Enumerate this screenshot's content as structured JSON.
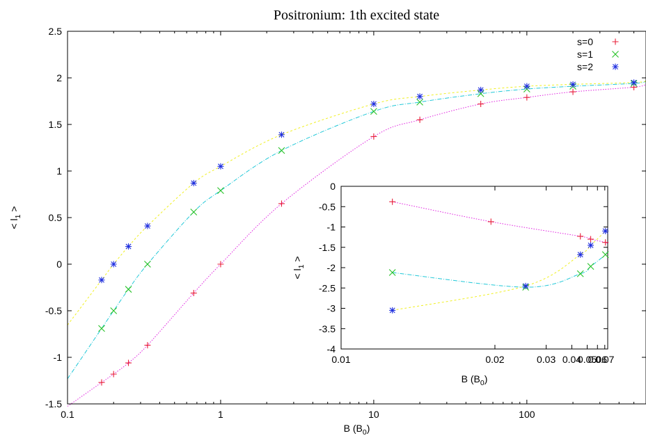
{
  "chart_data": [
    {
      "type": "scatter",
      "title": "Positronium: 1th excited state",
      "xlabel": "B (B",
      "xlabel_sub": "0",
      "xlabel_end": ")",
      "ylabel": "< l",
      "ylabel_sub": "1",
      "ylabel_end": " >",
      "xscale": "log",
      "xlim": [
        0.1,
        600
      ],
      "ylim": [
        -1.5,
        2.5
      ],
      "xticks": [
        0.1,
        1,
        10,
        100
      ],
      "xtick_labels": [
        "0.1",
        "1",
        "10",
        "100"
      ],
      "yticks": [
        -1.5,
        -1,
        -0.5,
        0,
        0.5,
        1,
        1.5,
        2,
        2.5
      ],
      "ytick_labels": [
        "-1.5",
        "-1",
        "-0.5",
        "0",
        "0.5",
        "1",
        "1.5",
        "2",
        "2.5"
      ],
      "legend_position": "top-right",
      "series": [
        {
          "name": "s=0",
          "color": "#e8203a",
          "marker": "plus",
          "line_color": "#e020e0",
          "x": [
            0.167,
            0.2,
            0.25,
            0.333,
            0.667,
            1,
            2.5,
            10,
            20,
            50,
            100,
            200,
            500
          ],
          "y": [
            -1.27,
            -1.18,
            -1.06,
            -0.87,
            -0.31,
            0.0,
            0.65,
            1.37,
            1.55,
            1.72,
            1.79,
            1.85,
            1.9
          ]
        },
        {
          "name": "s=1",
          "color": "#27c227",
          "marker": "cross",
          "line_color": "#20c8d8",
          "x": [
            0.167,
            0.2,
            0.25,
            0.333,
            0.667,
            1,
            2.5,
            10,
            20,
            50,
            100,
            200,
            500
          ],
          "y": [
            -0.69,
            -0.5,
            -0.27,
            0.0,
            0.56,
            0.79,
            1.22,
            1.64,
            1.74,
            1.83,
            1.88,
            1.91,
            1.94
          ]
        },
        {
          "name": "s=2",
          "color": "#2030e0",
          "marker": "star",
          "line_color": "#f0f020",
          "x": [
            0.167,
            0.2,
            0.25,
            0.333,
            0.667,
            1,
            2.5,
            10,
            20,
            50,
            100,
            200,
            500
          ],
          "y": [
            -0.17,
            0.0,
            0.19,
            0.41,
            0.87,
            1.05,
            1.39,
            1.72,
            1.8,
            1.87,
            1.91,
            1.93,
            1.95
          ]
        }
      ]
    },
    {
      "type": "scatter",
      "title": "",
      "xlabel": "B (B",
      "xlabel_sub": "0",
      "xlabel_end": ")",
      "ylabel": "< l",
      "ylabel_sub": "1",
      "ylabel_end": " >",
      "xscale": "reciprocal",
      "xlim": [
        0.01,
        0.075
      ],
      "ylim": [
        -4,
        0
      ],
      "xticks": [
        0.01,
        0.02,
        0.03,
        0.04,
        0.05,
        0.06,
        0.07
      ],
      "xtick_labels": [
        "0.01",
        "0.02",
        "0.03",
        "0.04",
        "0.05",
        "0.06",
        "0.07"
      ],
      "yticks": [
        0,
        -0.5,
        -1,
        -1.5,
        -2,
        -2.5,
        -3,
        -3.5,
        -4
      ],
      "ytick_labels": [
        "0",
        "-0.5",
        "-1",
        "-1.5",
        "-2",
        "-2.5",
        "-3",
        "-3.5",
        "-4"
      ],
      "series": [
        {
          "color": "#e8203a",
          "marker": "plus",
          "line_color": "#e020e0",
          "x": [
            0.012,
            0.0195,
            0.045,
            0.053,
            0.071
          ],
          "y": [
            -0.38,
            -0.87,
            -1.23,
            -1.3,
            -1.38
          ]
        },
        {
          "color": "#27c227",
          "marker": "cross",
          "line_color": "#20c8d8",
          "x": [
            0.012,
            0.025,
            0.045,
            0.053,
            0.071
          ],
          "y": [
            -2.12,
            -2.48,
            -2.15,
            -1.97,
            -1.68
          ]
        },
        {
          "color": "#2030e0",
          "marker": "star",
          "line_color": "#f0f020",
          "x": [
            0.012,
            0.025,
            0.045,
            0.053,
            0.071
          ],
          "y": [
            -3.05,
            -2.45,
            -1.68,
            -1.45,
            -1.1
          ]
        }
      ]
    }
  ]
}
